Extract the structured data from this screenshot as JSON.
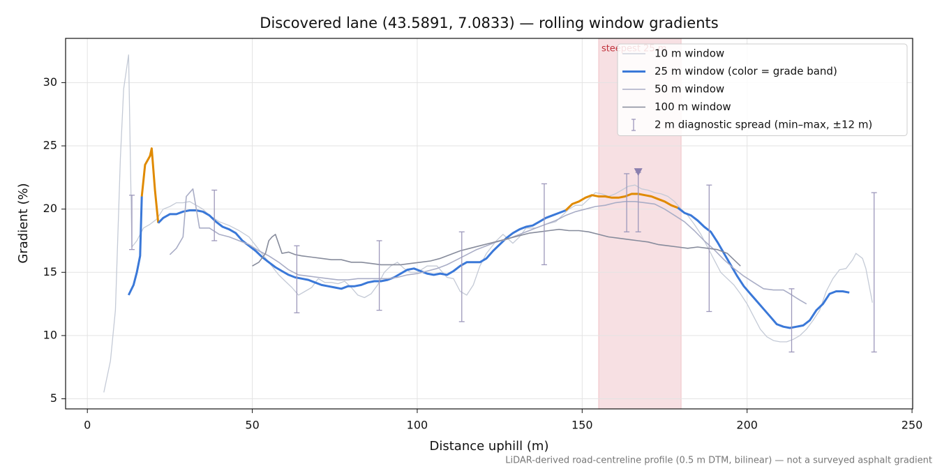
{
  "chart_data": {
    "type": "line",
    "title": "Discovered lane (43.5891, 7.0833) — rolling window gradients",
    "xlabel": "Distance uphill (m)",
    "ylabel": "Gradient (%)",
    "footnote": "LiDAR-derived road-centreline profile (0.5 m DTM, bilinear) — not a surveyed asphalt gradient",
    "xlim": [
      -6.6,
      250.2
    ],
    "ylim": [
      4.2,
      33.5
    ],
    "xticks": [
      0,
      50,
      100,
      150,
      200,
      250
    ],
    "yticks": [
      5,
      10,
      15,
      20,
      25,
      30
    ],
    "grid": true,
    "legend": "upper right",
    "highlight": {
      "x": [
        155,
        180
      ],
      "label": "steepest 25 m",
      "color": "#e9a7ae",
      "marker_x": 167,
      "marker_y": 22.9,
      "marker_color": "#8a7fae"
    },
    "series": [
      {
        "name": "10 m window",
        "color": "#c4cad6",
        "width": 1.3,
        "x": [
          5,
          7,
          8.5,
          10,
          11,
          12.5,
          13.5,
          15,
          17,
          19,
          21,
          23,
          25,
          27,
          29,
          31,
          33,
          35,
          37,
          40,
          43,
          46,
          49,
          52,
          55,
          58,
          60,
          62,
          64,
          66,
          68,
          70,
          72,
          74,
          76,
          78,
          80,
          82,
          84,
          86,
          88,
          90,
          92,
          94,
          96,
          98,
          100,
          103,
          106,
          109,
          111,
          113,
          115,
          117,
          119,
          121,
          124,
          126,
          129,
          131,
          133,
          136,
          139,
          142,
          144,
          146,
          148,
          150,
          152,
          154,
          156,
          158,
          160,
          162,
          164,
          166,
          168,
          170,
          172,
          174,
          176,
          178,
          180,
          182,
          184,
          186,
          188,
          190,
          192,
          194,
          196,
          198,
          200,
          202,
          204,
          206,
          208,
          210,
          212,
          214,
          216,
          218,
          220,
          222,
          224,
          226,
          228,
          230,
          232,
          233,
          235,
          236,
          238
        ],
        "values": [
          5.5,
          8,
          12,
          24,
          29.5,
          32.2,
          17,
          17.5,
          18.5,
          18.8,
          19.2,
          20,
          20.2,
          20.5,
          20.5,
          20.6,
          20.3,
          20,
          19.5,
          19,
          18.7,
          18.3,
          17.8,
          16.8,
          15.8,
          14.8,
          14.3,
          13.8,
          13.2,
          13.5,
          13.8,
          14.5,
          14.2,
          14.2,
          14.1,
          14.3,
          13.8,
          13.2,
          13,
          13.3,
          14,
          15,
          15.5,
          15.8,
          15.3,
          15,
          15,
          15.5,
          15.5,
          14.6,
          14.5,
          13.5,
          13.2,
          14,
          15.5,
          16.5,
          17.5,
          18,
          17.3,
          17.8,
          18.5,
          18.5,
          18.8,
          19,
          19.5,
          20,
          20.3,
          20.3,
          20.8,
          21.3,
          21.2,
          21,
          21.2,
          21.5,
          21.8,
          21.9,
          21.6,
          21.5,
          21.3,
          21.2,
          21,
          20.6,
          20,
          19.5,
          18.8,
          18,
          17,
          16,
          15,
          14.5,
          14,
          13.3,
          12.5,
          11.5,
          10.5,
          9.9,
          9.6,
          9.5,
          9.5,
          9.7,
          10,
          10.5,
          11.2,
          12,
          13.5,
          14.5,
          15.2,
          15.3,
          16,
          16.5,
          16.1,
          15.3,
          12.6
        ]
      },
      {
        "name": "25 m window (color = grade band)",
        "color": "#3a78d8",
        "width": 3,
        "grade_band": {
          "min": 20,
          "color": "#e08a00"
        },
        "x": [
          12.5,
          14,
          15,
          16,
          16.5,
          17.5,
          19,
          19.5,
          20.5,
          21.5,
          23,
          25,
          27,
          29,
          31,
          33,
          35,
          37,
          39,
          41,
          43,
          45,
          47,
          49,
          51,
          53,
          55,
          57,
          59,
          61,
          63,
          65,
          67,
          69,
          71,
          73,
          75,
          77,
          79,
          81,
          83,
          85,
          87,
          89,
          91,
          93,
          95,
          97,
          99,
          101,
          103,
          105,
          107,
          109,
          111,
          113,
          115,
          117,
          119,
          121,
          123,
          125,
          127,
          129,
          131,
          133,
          135,
          137,
          139,
          141,
          143,
          145,
          147,
          149,
          151,
          153,
          155,
          157,
          159,
          161,
          163,
          165,
          167,
          169,
          171,
          173,
          175,
          177,
          179,
          181,
          183,
          185,
          187,
          189,
          191,
          193,
          195,
          197,
          199,
          201,
          203,
          205,
          207,
          209,
          211,
          213,
          215,
          217,
          219,
          221,
          223,
          225,
          227,
          229,
          231
        ],
        "values": [
          13.2,
          14,
          15,
          16.3,
          21,
          23.5,
          24.2,
          24.8,
          21.5,
          18.9,
          19.3,
          19.6,
          19.6,
          19.8,
          19.9,
          19.9,
          19.8,
          19.5,
          19,
          18.6,
          18.4,
          18.1,
          17.5,
          17.1,
          16.7,
          16.2,
          15.8,
          15.4,
          15.1,
          14.8,
          14.6,
          14.5,
          14.4,
          14.2,
          14,
          13.9,
          13.8,
          13.7,
          13.9,
          13.9,
          14,
          14.2,
          14.3,
          14.3,
          14.4,
          14.6,
          14.9,
          15.2,
          15.3,
          15.1,
          14.9,
          14.8,
          14.9,
          14.8,
          15.1,
          15.5,
          15.8,
          15.8,
          15.8,
          16.1,
          16.7,
          17.2,
          17.7,
          18.1,
          18.4,
          18.6,
          18.7,
          19,
          19.3,
          19.5,
          19.7,
          19.9,
          20.4,
          20.6,
          20.9,
          21.1,
          21,
          21,
          20.9,
          20.9,
          21,
          21.2,
          21.2,
          21.1,
          21,
          20.8,
          20.6,
          20.3,
          20.1,
          19.7,
          19.5,
          19.1,
          18.6,
          18.2,
          17.4,
          16.5,
          15.6,
          14.7,
          13.9,
          13.3,
          12.7,
          12.1,
          11.5,
          10.9,
          10.7,
          10.6,
          10.7,
          10.8,
          11.2,
          12,
          12.5,
          13.3,
          13.5,
          13.5,
          13.4
        ]
      },
      {
        "name": "50 m window",
        "color": "#a9adc6",
        "width": 1.6,
        "x": [
          25,
          27,
          29,
          30,
          32,
          34,
          37,
          40,
          43,
          46,
          49,
          52,
          55,
          58,
          61,
          64,
          67,
          70,
          73,
          76,
          79,
          82,
          85,
          88,
          91,
          94,
          97,
          100,
          103,
          106,
          109,
          112,
          115,
          118,
          121,
          124,
          127,
          130,
          133,
          136,
          139,
          142,
          145,
          148,
          151,
          154,
          157,
          160,
          163,
          166,
          169,
          172,
          175,
          178,
          181,
          184,
          187,
          190,
          193,
          196,
          199,
          202,
          205,
          208,
          211,
          213,
          216,
          218
        ],
        "values": [
          16.4,
          16.9,
          17.8,
          21,
          21.6,
          18.5,
          18.5,
          18,
          17.8,
          17.5,
          17.2,
          16.7,
          16.3,
          15.8,
          15.2,
          14.8,
          14.7,
          14.6,
          14.5,
          14.4,
          14.4,
          14.5,
          14.5,
          14.5,
          14.5,
          14.6,
          14.8,
          14.9,
          15.1,
          15.3,
          15.6,
          16,
          16.4,
          16.8,
          17.1,
          17.4,
          17.6,
          17.9,
          18.2,
          18.5,
          18.8,
          19.1,
          19.5,
          19.8,
          20,
          20.2,
          20.3,
          20.5,
          20.6,
          20.6,
          20.5,
          20.4,
          20,
          19.5,
          19,
          18.3,
          17.5,
          16.8,
          16,
          15.3,
          14.7,
          14.2,
          13.7,
          13.6,
          13.6,
          13.3,
          12.8,
          12.5
        ]
      },
      {
        "name": "100 m window",
        "color": "#868b9b",
        "width": 1.6,
        "x": [
          50,
          52,
          54,
          55,
          56,
          57,
          59,
          61,
          63,
          65,
          68,
          71,
          74,
          77,
          80,
          83,
          86,
          89,
          92,
          95,
          98,
          101,
          104,
          107,
          110,
          113,
          116,
          119,
          122,
          125,
          128,
          131,
          134,
          137,
          140,
          143,
          146,
          149,
          152,
          155,
          158,
          161,
          164,
          167,
          170,
          173,
          176,
          179,
          182,
          185,
          188,
          191,
          194,
          196,
          198
        ],
        "values": [
          15.5,
          15.8,
          16.5,
          17.5,
          17.8,
          18,
          16.5,
          16.6,
          16.4,
          16.3,
          16.2,
          16.1,
          16,
          16,
          15.8,
          15.8,
          15.7,
          15.6,
          15.6,
          15.6,
          15.7,
          15.8,
          15.9,
          16.1,
          16.4,
          16.7,
          16.9,
          17.1,
          17.3,
          17.5,
          17.7,
          17.9,
          18.1,
          18.2,
          18.3,
          18.4,
          18.3,
          18.3,
          18.2,
          18,
          17.8,
          17.7,
          17.6,
          17.5,
          17.4,
          17.2,
          17.1,
          17,
          16.9,
          17,
          16.9,
          16.8,
          16.5,
          16,
          15.5
        ]
      }
    ],
    "spread": {
      "name": "2 m diagnostic spread (min–max, ±12 m)",
      "color": "#9d98bb",
      "x": [
        13.5,
        38.5,
        63.5,
        88.5,
        113.5,
        138.5,
        163.5,
        167,
        188.5,
        213.5,
        238.5
      ],
      "low": [
        16.8,
        17.5,
        11.8,
        12,
        11.1,
        15.6,
        18.2,
        18.2,
        11.9,
        8.7,
        8.7
      ],
      "high": [
        21.1,
        21.5,
        17.1,
        17.5,
        18.2,
        22,
        22.8,
        22.9,
        21.9,
        13.7,
        21.3
      ]
    }
  }
}
